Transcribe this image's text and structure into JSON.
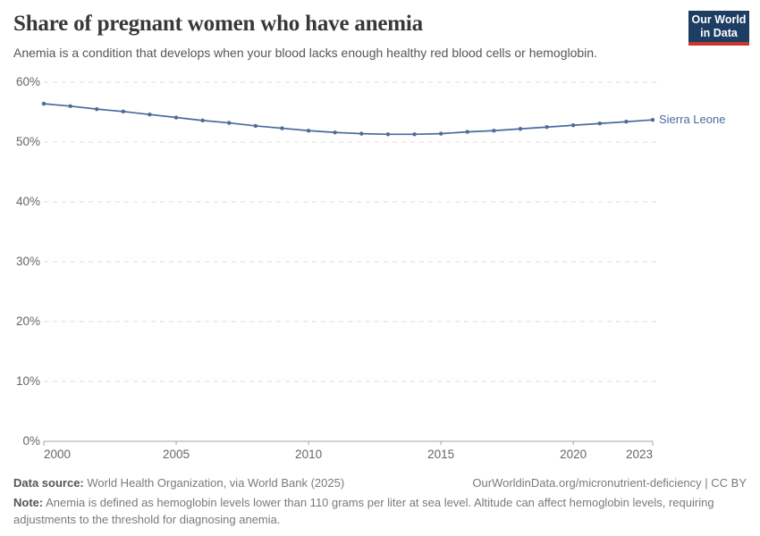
{
  "header": {
    "title": "Share of pregnant women who have anemia",
    "subtitle": "Anemia is a condition that develops when your blood lacks enough healthy red blood cells or hemoglobin.",
    "logo": {
      "line1": "Our World",
      "line2": "in Data"
    }
  },
  "chart_data": {
    "type": "line",
    "title": "Share of pregnant women who have anemia",
    "xlabel": "",
    "ylabel": "",
    "xlim": [
      2000,
      2023
    ],
    "ylim": [
      0,
      60
    ],
    "grid": "horizontal-dashed",
    "legend_position": "end-of-line-label",
    "xtick_values": [
      2000,
      2005,
      2010,
      2015,
      2020,
      2023
    ],
    "xtick_labels": [
      "2000",
      "2005",
      "2010",
      "2015",
      "2020",
      "2023"
    ],
    "ytick_values": [
      0,
      10,
      20,
      30,
      40,
      50,
      60
    ],
    "ytick_labels": [
      "0%",
      "10%",
      "20%",
      "30%",
      "40%",
      "50%",
      "60%"
    ],
    "series": [
      {
        "name": "Sierra Leone",
        "color": "#4c6a9c",
        "x": [
          2000,
          2001,
          2002,
          2003,
          2004,
          2005,
          2006,
          2007,
          2008,
          2009,
          2010,
          2011,
          2012,
          2013,
          2014,
          2015,
          2016,
          2017,
          2018,
          2019,
          2020,
          2021,
          2022,
          2023
        ],
        "values": [
          56.4,
          56.0,
          55.5,
          55.1,
          54.6,
          54.1,
          53.6,
          53.2,
          52.7,
          52.3,
          51.9,
          51.6,
          51.4,
          51.3,
          51.3,
          51.4,
          51.7,
          51.9,
          52.2,
          52.5,
          52.8,
          53.1,
          53.4,
          53.7
        ]
      }
    ]
  },
  "footer": {
    "data_source_label": "Data source:",
    "data_source": " World Health Organization, via World Bank (2025)",
    "link": "OurWorldinData.org/micronutrient-deficiency | CC BY",
    "note_label": "Note:",
    "note": " Anemia is defined as hemoglobin levels lower than 110 grams per liter at sea level. Altitude can affect hemoglobin levels, requiring adjustments to the threshold for diagnosing anemia."
  },
  "colors": {
    "line": "#4c6a9c",
    "grid": "#dcdcdc",
    "axis": "#a3a3a3",
    "logo_navy": "#1d3d63",
    "logo_red": "#c8372d",
    "title_text": "#383838",
    "muted_text": "#666666"
  }
}
